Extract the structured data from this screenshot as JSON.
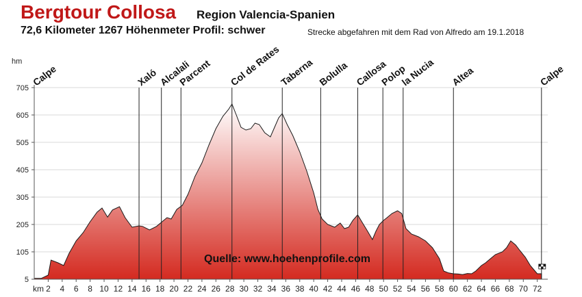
{
  "header": {
    "title": "Bergtour Collosa",
    "region": "Region Valencia-Spanien",
    "stats": "72,6 Kilometer  1267 Höhenmeter  Profil: schwer",
    "note": "Strecke abgefahren mit dem Rad von Alfredo am 19.1.2018"
  },
  "chart_data": {
    "type": "area",
    "ylabel": "hm",
    "xlabel": "km",
    "ylim": [
      5,
      705
    ],
    "xlim": [
      0,
      73.5
    ],
    "yticks": [
      "705",
      "605",
      "505",
      "405",
      "305",
      "205",
      "105",
      "5"
    ],
    "xticks": [
      "2",
      "4",
      "6",
      "8",
      "10",
      "12",
      "14",
      "16",
      "18",
      "20",
      "22",
      "24",
      "26",
      "28",
      "30",
      "32",
      "34",
      "36",
      "38",
      "40",
      "42",
      "44",
      "46",
      "48",
      "50",
      "52",
      "54",
      "56",
      "58",
      "60",
      "62",
      "64",
      "66",
      "68",
      "70",
      "72"
    ],
    "grid": true,
    "fill_colors": [
      "#d42a20",
      "#ffffff"
    ],
    "source": "Quelle: www.hoehenprofile.com",
    "series": [
      {
        "x": [
          0,
          1,
          2,
          2.4,
          3.4,
          4.2,
          5,
          6,
          7,
          8,
          9,
          9.7,
          10.5,
          11.2,
          12.2,
          13,
          14,
          15,
          15.5,
          16.5,
          17.5,
          18.3,
          19,
          19.6,
          20.4,
          21.2,
          22,
          23,
          24,
          25,
          26,
          27,
          27.8,
          28.3,
          29,
          29.6,
          30.3,
          31,
          31.6,
          32.2,
          33,
          33.8,
          34.4,
          35,
          35.5,
          36.2,
          37,
          38,
          39,
          40,
          40.6,
          41.2,
          42,
          43,
          43.8,
          44.4,
          45,
          45.6,
          46.3,
          47,
          47.6,
          48.4,
          48.9,
          49.4,
          50,
          50.5,
          51.2,
          52,
          52.6,
          53.2,
          54,
          55,
          56,
          57,
          58,
          58.6,
          59.3,
          60,
          60.7,
          61.3,
          62,
          62.6,
          63.2,
          64,
          64.6,
          65.3,
          66,
          67,
          67.6,
          68.2,
          68.9,
          69.5,
          70.3,
          71,
          71.5,
          72,
          72.6
        ],
        "y": [
          8,
          8,
          20,
          75,
          65,
          55,
          100,
          145,
          175,
          215,
          250,
          265,
          232,
          258,
          270,
          230,
          195,
          200,
          198,
          185,
          198,
          215,
          230,
          225,
          260,
          275,
          315,
          380,
          430,
          495,
          555,
          600,
          625,
          645,
          600,
          560,
          550,
          555,
          575,
          570,
          540,
          525,
          560,
          595,
          610,
          570,
          530,
          470,
          400,
          320,
          260,
          225,
          205,
          195,
          210,
          190,
          195,
          220,
          240,
          210,
          185,
          150,
          180,
          205,
          220,
          230,
          245,
          255,
          245,
          190,
          170,
          160,
          145,
          120,
          80,
          35,
          28,
          25,
          24,
          22,
          26,
          25,
          35,
          55,
          65,
          80,
          95,
          105,
          120,
          145,
          130,
          110,
          85,
          55,
          40,
          25,
          25
        ]
      }
    ],
    "waypoints": [
      {
        "label": "Calpe",
        "x": 0
      },
      {
        "label": "Xaló",
        "x": 15
      },
      {
        "label": "Alcalali",
        "x": 18.2
      },
      {
        "label": "Parcent",
        "x": 21
      },
      {
        "label": "Col de Rates",
        "x": 28.3
      },
      {
        "label": "Taberna",
        "x": 35.5
      },
      {
        "label": "Bolulla",
        "x": 41
      },
      {
        "label": "Callosa",
        "x": 46.3
      },
      {
        "label": "Polop",
        "x": 49.9
      },
      {
        "label": "la Nucia",
        "x": 52.8
      },
      {
        "label": "Altea",
        "x": 60
      },
      {
        "label": "Calpe",
        "x": 72.6
      }
    ]
  }
}
